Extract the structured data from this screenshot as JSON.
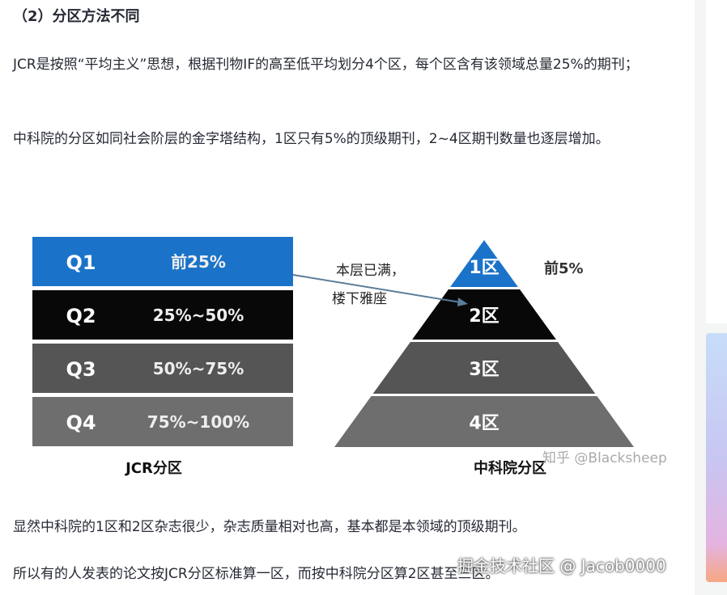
{
  "heading": "（2）分区方法不同",
  "paragraphs": [
    "JCR是按照“平均主义”思想，根据刊物IF的高至低平均划分4个区，每个区含有该领域总量25%的期刊；",
    "中科院的分区如同社会阶层的金字塔结构，1区只有5%的顶级期刊，2~4区期刊数量也逐层增加。",
    "显然中科院的1区和2区杂志很少，杂志质量相对也高，基本都是本领域的顶级期刊。",
    "所以有的人发表的论文按JCR分区标准算一区，而按中科院分区算2区甚至三区。"
  ],
  "figure": {
    "jcr_rows": [
      {
        "q": "Q1",
        "range": "前25%",
        "color": "#1a73c9"
      },
      {
        "q": "Q2",
        "range": "25%~50%",
        "color": "#080808"
      },
      {
        "q": "Q3",
        "range": "50%~75%",
        "color": "#555555"
      },
      {
        "q": "Q4",
        "range": "75%~100%",
        "color": "#6e6e6e"
      }
    ],
    "jcr_label": "JCR分区",
    "pyramid": [
      {
        "label": "1区",
        "color": "#1a73c9"
      },
      {
        "label": "2区",
        "color": "#080808"
      },
      {
        "label": "3区",
        "color": "#555555"
      },
      {
        "label": "4区",
        "color": "#6e6e6e"
      }
    ],
    "top_note": "前5%",
    "arrow_note_1": "本层已满，",
    "arrow_note_2": "楼下雅座",
    "cas_label": "中科院分区",
    "image_watermark": "知乎 @Blacksheep"
  },
  "watermark": "掘金技术社区 @ Jacob0000"
}
